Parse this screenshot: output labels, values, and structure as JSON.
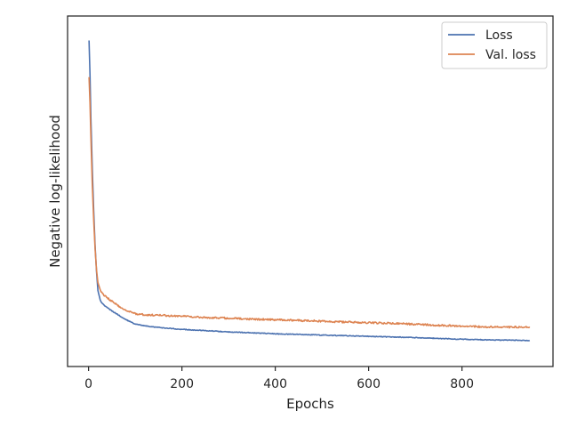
{
  "chart_data": {
    "type": "line",
    "title": "",
    "xlabel": "Epochs",
    "ylabel": "Negative log-likelihood",
    "xlim": [
      -45,
      995
    ],
    "ylim": [
      0,
      100
    ],
    "xticks": [
      0,
      200,
      400,
      600,
      800
    ],
    "yticks": [],
    "grid": false,
    "legend_position": "top-right",
    "series": [
      {
        "name": "Loss",
        "color": "#4c72b0",
        "x": [
          1,
          3,
          5,
          8,
          11,
          14,
          17,
          20,
          25,
          30,
          40,
          50,
          60,
          70,
          80,
          90,
          100,
          120,
          150,
          200,
          250,
          300,
          350,
          400,
          450,
          500,
          550,
          600,
          650,
          700,
          750,
          800,
          850,
          900,
          945
        ],
        "y": [
          96.5,
          86,
          72,
          56,
          43,
          32,
          24,
          18,
          15,
          13.8,
          12.6,
          11.6,
          10.7,
          9.7,
          8.9,
          8.1,
          7.5,
          6.9,
          6.4,
          5.8,
          5.4,
          5.0,
          4.7,
          4.4,
          4.2,
          4.0,
          3.8,
          3.6,
          3.4,
          3.2,
          2.95,
          2.7,
          2.5,
          2.4,
          2.35
        ]
      },
      {
        "name": "Val. loss",
        "color": "#dd8452",
        "x": [
          1,
          3,
          5,
          8,
          11,
          14,
          17,
          20,
          25,
          30,
          40,
          50,
          60,
          70,
          80,
          90,
          100,
          120,
          150,
          200,
          250,
          300,
          350,
          400,
          450,
          500,
          550,
          600,
          650,
          700,
          750,
          800,
          850,
          900,
          945
        ],
        "y": [
          85,
          77,
          66,
          51,
          40,
          31,
          24.5,
          20.5,
          18.2,
          17.0,
          15.7,
          14.6,
          13.6,
          12.6,
          11.8,
          11.2,
          10.7,
          10.4,
          10.2,
          10.0,
          9.5,
          9.3,
          9.0,
          8.8,
          8.6,
          8.4,
          8.1,
          7.9,
          7.7,
          7.4,
          7.1,
          6.8,
          6.6,
          6.5,
          6.6
        ]
      }
    ]
  }
}
